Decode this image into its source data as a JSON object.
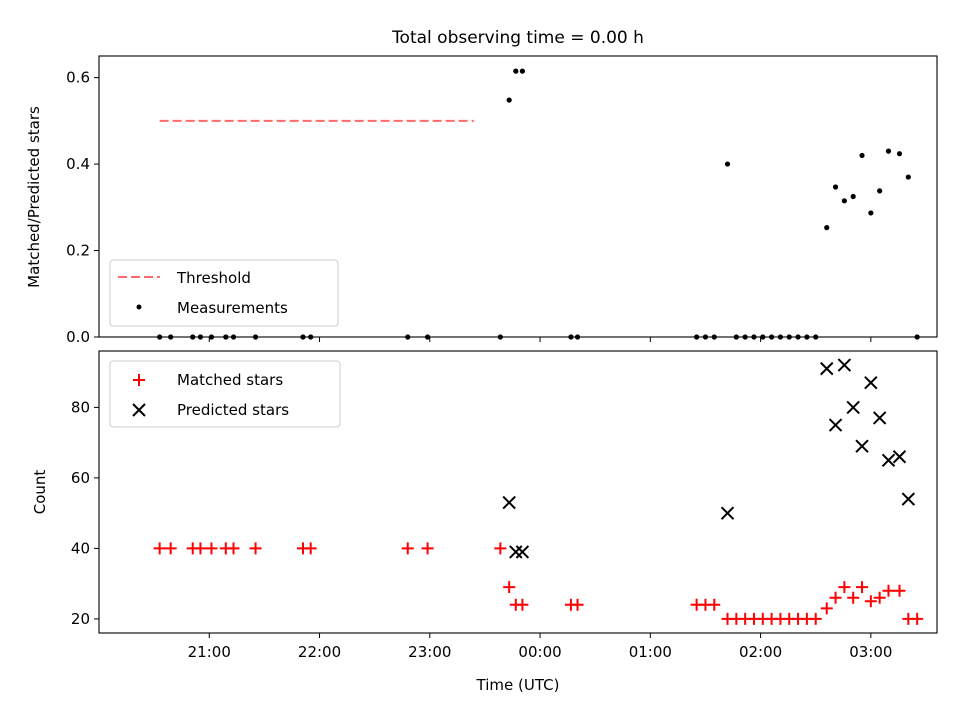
{
  "title": "Total observing time = 0.00 h",
  "chart_data": [
    {
      "type": "scatter",
      "ylabel": "Matched/Predicted stars",
      "ylim": [
        0,
        0.65
      ],
      "yticks": [
        "0.0",
        "0.2",
        "0.4",
        "0.6"
      ],
      "ytick_values": [
        0,
        0.2,
        0.4,
        0.6
      ],
      "legend": {
        "position": "lower-left"
      },
      "threshold": {
        "name": "Threshold",
        "value": 0.5,
        "x_start": 20.55,
        "x_end": 23.4,
        "color": "#ff6b6b"
      },
      "series": [
        {
          "name": "Measurements",
          "color": "#000000",
          "x": [
            20.55,
            20.65,
            20.85,
            20.92,
            21.02,
            21.15,
            21.22,
            21.42,
            21.85,
            21.92,
            22.8,
            22.98,
            23.64,
            23.72,
            23.78,
            23.84,
            24.28,
            24.34,
            25.42,
            25.5,
            25.58,
            25.7,
            25.78,
            25.86,
            25.94,
            26.02,
            26.1,
            26.18,
            26.26,
            26.34,
            26.42,
            26.5,
            26.6,
            26.68,
            26.76,
            26.84,
            26.92,
            27.0,
            27.08,
            27.16,
            27.26,
            27.34,
            27.42
          ],
          "y": [
            0,
            0,
            0,
            0,
            0,
            0,
            0,
            0,
            0,
            0,
            0,
            0,
            0,
            0.548,
            0.615,
            0.615,
            0,
            0,
            0,
            0,
            0,
            0.4,
            0,
            0,
            0,
            0,
            0,
            0,
            0,
            0,
            0,
            0,
            0.253,
            0.347,
            0.315,
            0.325,
            0.42,
            0.287,
            0.338,
            0.43,
            0.424,
            0.37,
            0
          ]
        }
      ]
    },
    {
      "type": "scatter",
      "xlabel": "Time (UTC)",
      "ylabel": "Count",
      "xlim": [
        20.0,
        27.6
      ],
      "ylim": [
        16,
        96
      ],
      "xticks": [
        "21:00",
        "22:00",
        "23:00",
        "00:00",
        "01:00",
        "02:00",
        "03:00"
      ],
      "xtick_values": [
        21,
        22,
        23,
        24,
        25,
        26,
        27
      ],
      "yticks": [
        "20",
        "40",
        "60",
        "80"
      ],
      "ytick_values": [
        20,
        40,
        60,
        80
      ],
      "legend": {
        "position": "upper-left"
      },
      "series": [
        {
          "name": "Matched stars",
          "color": "#ff0000",
          "marker": "plus",
          "x": [
            20.55,
            20.65,
            20.85,
            20.92,
            21.02,
            21.15,
            21.22,
            21.42,
            21.85,
            21.92,
            22.8,
            22.98,
            23.64,
            23.72,
            23.78,
            23.84,
            24.28,
            24.34,
            25.42,
            25.5,
            25.58,
            25.7,
            25.78,
            25.86,
            25.94,
            26.02,
            26.1,
            26.18,
            26.26,
            26.34,
            26.42,
            26.5,
            26.6,
            26.68,
            26.76,
            26.84,
            26.92,
            27.0,
            27.08,
            27.16,
            27.26,
            27.34,
            27.42
          ],
          "y": [
            40,
            40,
            40,
            40,
            40,
            40,
            40,
            40,
            40,
            40,
            40,
            40,
            40,
            29,
            24,
            24,
            24,
            24,
            24,
            24,
            24,
            20,
            20,
            20,
            20,
            20,
            20,
            20,
            20,
            20,
            20,
            20,
            23,
            26,
            29,
            26,
            29,
            25,
            26,
            28,
            28,
            20,
            20
          ]
        },
        {
          "name": "Predicted stars",
          "color": "#000000",
          "marker": "x",
          "x": [
            23.72,
            23.78,
            23.84,
            25.7,
            26.6,
            26.68,
            26.76,
            26.84,
            26.92,
            27.0,
            27.08,
            27.16,
            27.26,
            27.34
          ],
          "y": [
            53,
            39,
            39,
            50,
            91,
            75,
            92,
            80,
            69,
            87,
            77,
            65,
            66,
            54
          ]
        }
      ]
    }
  ]
}
